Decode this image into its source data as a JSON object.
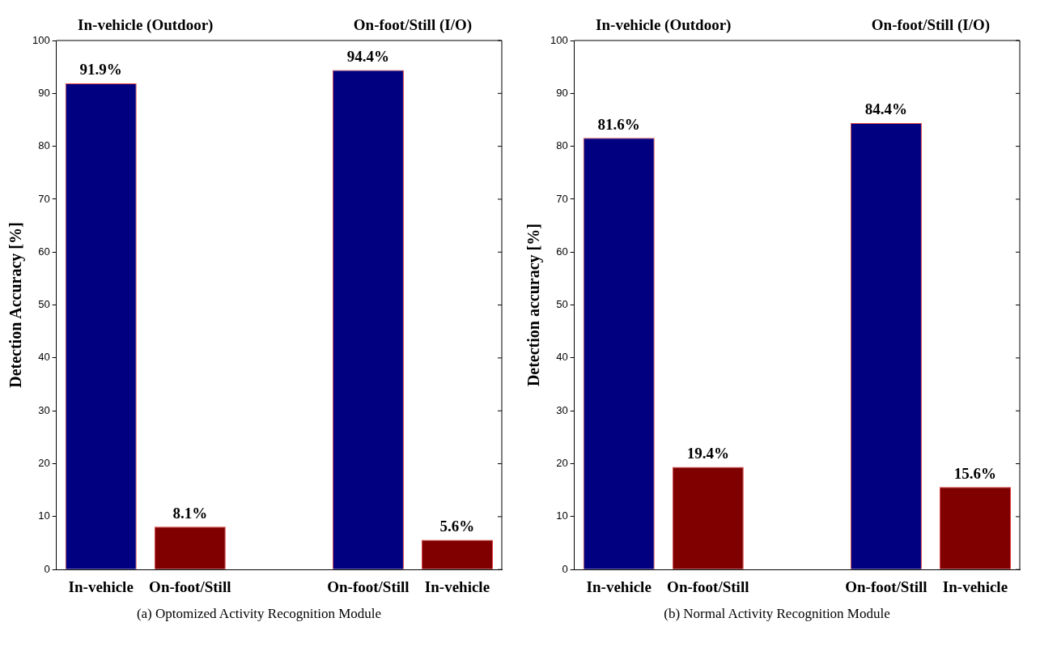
{
  "chart_data": [
    {
      "type": "bar",
      "ylabel": "Detection Accuracy [%]",
      "categories": [
        "In-vehicle",
        "On-foot/Still",
        null,
        "On-foot/Still",
        "In-vehicle"
      ],
      "values": [
        91.9,
        8.1,
        null,
        94.4,
        5.6
      ],
      "colors": [
        "#000080",
        "#800000",
        "#000080",
        "#000080",
        "#800000"
      ],
      "value_labels": [
        "91.9%",
        "8.1%",
        null,
        "94.4%",
        "5.6%"
      ],
      "ylim": [
        0,
        100
      ],
      "yticks": [
        0,
        10,
        20,
        30,
        40,
        50,
        60,
        70,
        80,
        90,
        100
      ],
      "grid": false,
      "legend": false,
      "annotations": [
        "In-vehicle (Outdoor)",
        "On-foot/Still (I/O)",
        "(a) Optomized Activity Recognition Module"
      ]
    },
    {
      "type": "bar",
      "ylabel": "Detection accuracy [%]",
      "categories": [
        "In-vehicle",
        "On-foot/Still",
        null,
        "On-foot/Still",
        "In-vehicle"
      ],
      "values": [
        81.6,
        19.4,
        null,
        84.4,
        15.6
      ],
      "colors": [
        "#000080",
        "#800000",
        "#000080",
        "#000080",
        "#800000"
      ],
      "value_labels": [
        "81.6%",
        "19.4%",
        null,
        "84.4%",
        "15.6%"
      ],
      "ylim": [
        0,
        100
      ],
      "yticks": [
        0,
        10,
        20,
        30,
        40,
        50,
        60,
        70,
        80,
        90,
        100
      ],
      "grid": false,
      "legend": false,
      "annotations": [
        "In-vehicle (Outdoor)",
        "On-foot/Still (I/O)",
        "(b) Normal Activity Recognition Module"
      ]
    }
  ]
}
